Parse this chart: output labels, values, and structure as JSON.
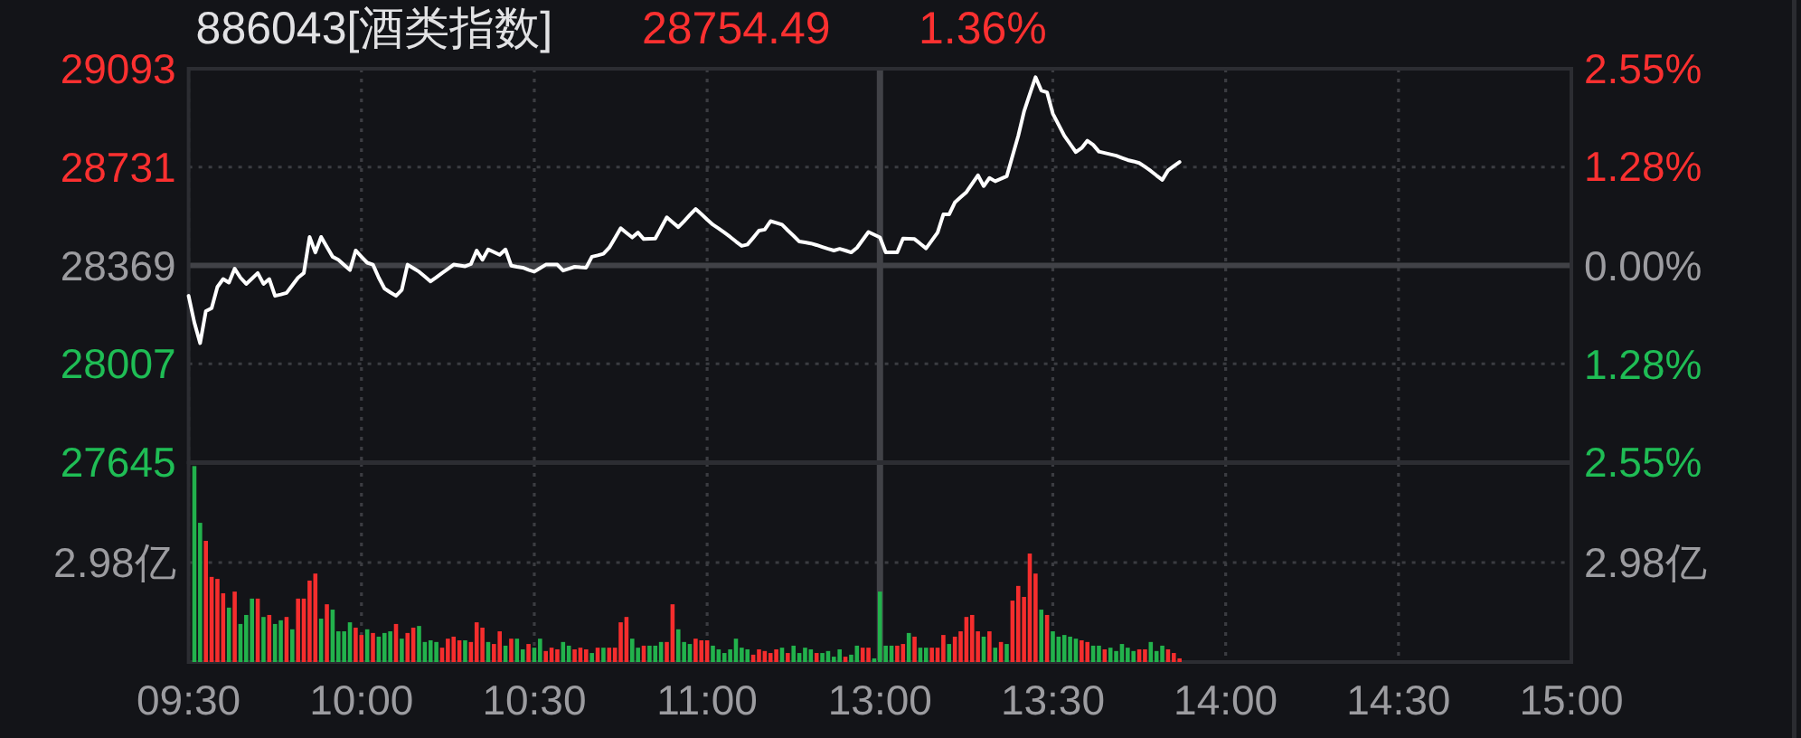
{
  "chart_data": [
    {
      "type": "line",
      "title": "886043[酒类指数]",
      "annotations": [
        "28754.49",
        "1.36%"
      ],
      "categories": [
        "09:30",
        null,
        null,
        null,
        null,
        null,
        null,
        null,
        null,
        null,
        null,
        null,
        null,
        null,
        null,
        null,
        null,
        null,
        null,
        null,
        null,
        null,
        null,
        null,
        null,
        null,
        null,
        null,
        null,
        null,
        "10:00",
        null,
        null,
        null,
        null,
        null,
        null,
        null,
        null,
        null,
        null,
        null,
        null,
        null,
        null,
        null,
        null,
        null,
        null,
        null,
        null,
        null,
        null,
        null,
        null,
        null,
        null,
        null,
        null,
        null,
        "10:30",
        null,
        null,
        null,
        null,
        null,
        null,
        null,
        null,
        null,
        null,
        null,
        null,
        null,
        null,
        null,
        null,
        null,
        null,
        null,
        null,
        null,
        null,
        null,
        null,
        null,
        null,
        null,
        null,
        null,
        "11:00",
        null,
        null,
        null,
        null,
        null,
        null,
        null,
        null,
        null,
        null,
        null,
        null,
        null,
        null,
        null,
        null,
        null,
        null,
        null,
        null,
        null,
        null,
        null,
        null,
        null,
        null,
        null,
        null,
        null,
        "13:00",
        null,
        null,
        null,
        null,
        null,
        null,
        null,
        null,
        null,
        null,
        null,
        null,
        null,
        null,
        null,
        null,
        null,
        null,
        null,
        null,
        null,
        null,
        null,
        null,
        null,
        null,
        null,
        null,
        null,
        "13:30",
        null,
        null,
        null,
        null,
        null,
        null,
        null,
        null,
        null,
        null,
        null,
        null,
        null,
        null,
        null,
        null,
        null,
        null,
        null,
        null,
        null,
        null,
        null,
        null,
        null,
        null,
        null,
        null,
        null,
        "14:00",
        null,
        null,
        null,
        null,
        null,
        null,
        null,
        null,
        null,
        null,
        null,
        null,
        null,
        null,
        null,
        null,
        null,
        null,
        null,
        null,
        null,
        null,
        null,
        null,
        null,
        null,
        null,
        null,
        null,
        "14:30",
        null,
        null,
        null,
        null,
        null,
        null,
        null,
        null,
        null,
        null,
        null,
        null,
        null,
        null,
        null,
        null,
        null,
        null,
        null,
        null,
        null,
        null,
        null,
        null,
        null,
        null,
        null,
        null,
        null,
        "15:00"
      ],
      "series": [
        {
          "color": "#ffffff",
          "values": [
            28257,
            28159,
            28083,
            28201,
            28212,
            28290,
            28319,
            28306,
            28357,
            28324,
            28301,
            28321,
            28341,
            28301,
            28319,
            28257,
            28262,
            28268,
            28296,
            28324,
            28341,
            28474,
            28417,
            28474,
            28437,
            28401,
            28390,
            28371,
            28352,
            28424,
            28401,
            28379,
            28372,
            28324,
            28284,
            28270,
            28257,
            28279,
            28372,
            28359,
            28346,
            28328,
            28310,
            28325,
            28341,
            28356,
            28372,
            28369,
            28366,
            28374,
            28424,
            28390,
            28428,
            28418,
            28408,
            28428,
            28368,
            28364,
            28361,
            28353,
            28346,
            28359,
            28372,
            28372,
            28372,
            28350,
            28357,
            28364,
            28362,
            28361,
            28401,
            28406,
            28412,
            28434,
            28470,
            28506,
            28489,
            28472,
            28490,
            28466,
            28467,
            28468,
            28507,
            28546,
            28528,
            28510,
            28532,
            28555,
            28577,
            28558,
            28538,
            28519,
            28505,
            28490,
            28474,
            28457,
            28441,
            28446,
            28471,
            28497,
            28501,
            28532,
            28526,
            28519,
            28498,
            28478,
            28457,
            28454,
            28450,
            28444,
            28437,
            28430,
            28424,
            28430,
            28424,
            28417,
            28434,
            28463,
            28492,
            28482,
            28472,
            28417,
            28417,
            28417,
            28468,
            28467,
            28466,
            28449,
            28432,
            28461,
            28490,
            28557,
            28557,
            28601,
            28620,
            28639,
            28670,
            28701,
            28661,
            28691,
            28679,
            28688,
            28697,
            28772,
            28846,
            28935,
            28999,
            29062,
            29013,
            29006,
            28928,
            28887,
            28846,
            28816,
            28786,
            28801,
            28828,
            28813,
            28788,
            28783,
            28778,
            28773,
            28765,
            28757,
            28752,
            28746,
            28732,
            28717,
            28700,
            28684,
            28719,
            28735,
            28750,
            null,
            null,
            null,
            null,
            null,
            null,
            null,
            null,
            null,
            null,
            null,
            null,
            null,
            null,
            null,
            null,
            null,
            null,
            null,
            null,
            null,
            null,
            null,
            null,
            null,
            null,
            null,
            null,
            null,
            null,
            null,
            null,
            null,
            null,
            null,
            null,
            null,
            null,
            null,
            null,
            null,
            null,
            null,
            null,
            null,
            null,
            null,
            null,
            null,
            null,
            null,
            null,
            null,
            null,
            null,
            null,
            null,
            null,
            null,
            null,
            null,
            null,
            null,
            null,
            null,
            null,
            null,
            null
          ]
        }
      ],
      "ylim": [
        27645,
        29093
      ],
      "yticks": [
        29093,
        28731,
        28369,
        28007,
        27645
      ],
      "y2lim": [
        -2.55,
        2.55
      ],
      "y2ticks": [
        {
          "value": 2.55,
          "label": "2.55%"
        },
        {
          "value": 1.28,
          "label": "1.28%"
        },
        {
          "value": 0,
          "label": "0.00%"
        },
        {
          "value": -1.28,
          "label": "1.28%"
        },
        {
          "value": -2.55,
          "label": "2.55%"
        }
      ],
      "grid": true,
      "tick_labels": "y",
      "ref_lines": [
        {
          "axis": "y",
          "value": 28369
        },
        {
          "axis": "x",
          "value": "13:00"
        }
      ]
    },
    {
      "type": "bar",
      "categories": [
        "09:30",
        null,
        null,
        null,
        null,
        null,
        null,
        null,
        null,
        null,
        null,
        null,
        null,
        null,
        null,
        null,
        null,
        null,
        null,
        null,
        null,
        null,
        null,
        null,
        null,
        null,
        null,
        null,
        null,
        null,
        "10:00",
        null,
        null,
        null,
        null,
        null,
        null,
        null,
        null,
        null,
        null,
        null,
        null,
        null,
        null,
        null,
        null,
        null,
        null,
        null,
        null,
        null,
        null,
        null,
        null,
        null,
        null,
        null,
        null,
        null,
        "10:30",
        null,
        null,
        null,
        null,
        null,
        null,
        null,
        null,
        null,
        null,
        null,
        null,
        null,
        null,
        null,
        null,
        null,
        null,
        null,
        null,
        null,
        null,
        null,
        null,
        null,
        null,
        null,
        null,
        null,
        "11:00",
        null,
        null,
        null,
        null,
        null,
        null,
        null,
        null,
        null,
        null,
        null,
        null,
        null,
        null,
        null,
        null,
        null,
        null,
        null,
        null,
        null,
        null,
        null,
        null,
        null,
        null,
        null,
        null,
        null,
        "13:00",
        null,
        null,
        null,
        null,
        null,
        null,
        null,
        null,
        null,
        null,
        null,
        null,
        null,
        null,
        null,
        null,
        null,
        null,
        null,
        null,
        null,
        null,
        null,
        null,
        null,
        null,
        null,
        null,
        null,
        "13:30",
        null,
        null,
        null,
        null,
        null,
        null,
        null,
        null,
        null,
        null,
        null,
        null,
        null,
        null,
        null,
        null,
        null,
        null,
        null,
        null,
        null,
        null,
        null,
        null,
        null,
        null,
        null,
        null,
        null,
        "14:00",
        null,
        null,
        null,
        null,
        null,
        null,
        null,
        null,
        null,
        null,
        null,
        null,
        null,
        null,
        null,
        null,
        null,
        null,
        null,
        null,
        null,
        null,
        null,
        null,
        null,
        null,
        null,
        null,
        null,
        "14:30",
        null,
        null,
        null,
        null,
        null,
        null,
        null,
        null,
        null,
        null,
        null,
        null,
        null,
        null,
        null,
        null,
        null,
        null,
        null,
        null,
        null,
        null,
        null,
        null,
        null,
        null,
        null,
        null,
        null,
        "15:00"
      ],
      "values": [
        null,
        5.87,
        4.17,
        3.63,
        2.55,
        2.49,
        2.06,
        1.63,
        2.11,
        1.14,
        1.41,
        1.9,
        1.9,
        1.35,
        1.41,
        1.14,
        1.25,
        1.35,
        0.98,
        1.9,
        1.9,
        2.44,
        2.65,
        1.3,
        1.73,
        1.57,
        0.92,
        0.92,
        1.19,
        1.03,
        0.81,
        0.98,
        0.87,
        0.76,
        0.87,
        0.92,
        1.14,
        0.7,
        0.87,
        1.03,
        1.08,
        0.6,
        0.65,
        0.6,
        0.43,
        0.7,
        0.76,
        0.65,
        0.65,
        0.6,
        1.19,
        1.03,
        0.6,
        0.54,
        0.92,
        0.49,
        0.7,
        0.7,
        0.38,
        0.54,
        0.43,
        0.7,
        0.33,
        0.43,
        0.38,
        0.6,
        0.49,
        0.38,
        0.43,
        0.38,
        0.27,
        0.43,
        0.43,
        0.43,
        0.43,
        1.19,
        1.35,
        0.7,
        0.43,
        0.49,
        0.49,
        0.49,
        0.6,
        0.6,
        1.73,
        0.98,
        0.6,
        0.54,
        0.7,
        0.65,
        0.65,
        0.49,
        0.38,
        0.27,
        0.38,
        0.7,
        0.43,
        0.38,
        0.22,
        0.38,
        0.33,
        0.27,
        0.38,
        0.43,
        0.27,
        0.49,
        0.27,
        0.43,
        0.38,
        0.27,
        0.27,
        0.33,
        0.16,
        0.38,
        0.16,
        0.22,
        0.49,
        0.43,
        0.43,
        0.11,
        2.11,
        0.49,
        0.49,
        0.49,
        0.54,
        0.87,
        0.76,
        0.43,
        0.43,
        0.43,
        0.43,
        0.81,
        0.54,
        0.76,
        0.92,
        1.35,
        1.41,
        0.92,
        0.76,
        0.92,
        0.43,
        0.6,
        0.54,
        1.84,
        2.28,
        1.95,
        3.25,
        2.65,
        1.57,
        1.41,
        0.92,
        0.76,
        0.81,
        0.76,
        0.7,
        0.65,
        0.6,
        0.49,
        0.49,
        0.38,
        0.43,
        0.33,
        0.54,
        0.43,
        0.33,
        0.38,
        0.38,
        0.6,
        0.33,
        0.49,
        0.38,
        0.27,
        0.11,
        null,
        null,
        null,
        null,
        null,
        null,
        null,
        null,
        null,
        null,
        null,
        null,
        null,
        null,
        null,
        null,
        null,
        null,
        null,
        null,
        null,
        null,
        null,
        null,
        null,
        null,
        null,
        null,
        null,
        null,
        null,
        null,
        null,
        null,
        null,
        null,
        null,
        null,
        null,
        null,
        null,
        null,
        null,
        null,
        null,
        null,
        null,
        null,
        null,
        null,
        null,
        null,
        null,
        null,
        null,
        null,
        null,
        null,
        null,
        null,
        null,
        null,
        null,
        null,
        null,
        null,
        null,
        null
      ],
      "colors": [
        null,
        "#22b24c",
        "#22b24c",
        "#f52d2d",
        "#f52d2d",
        "#f52d2d",
        "#f52d2d",
        "#22b24c",
        "#f52d2d",
        "#22b24c",
        "#22b24c",
        "#22b24c",
        "#f52d2d",
        "#22b24c",
        "#f52d2d",
        "#22b24c",
        "#22b24c",
        "#f52d2d",
        "#22b24c",
        "#f52d2d",
        "#f52d2d",
        "#f52d2d",
        "#f52d2d",
        "#22b24c",
        "#f52d2d",
        "#22b24c",
        "#22b24c",
        "#22b24c",
        "#22b24c",
        "#f52d2d",
        "#f52d2d",
        "#22b24c",
        "#f52d2d",
        "#22b24c",
        "#22b24c",
        "#22b24c",
        "#f52d2d",
        "#22b24c",
        "#f52d2d",
        "#f52d2d",
        "#22b24c",
        "#22b24c",
        "#22b24c",
        "#22b24c",
        "#f52d2d",
        "#f52d2d",
        "#f52d2d",
        "#f52d2d",
        "#22b24c",
        "#f52d2d",
        "#f52d2d",
        "#f52d2d",
        "#22b24c",
        "#f52d2d",
        "#f52d2d",
        "#22b24c",
        "#f52d2d",
        "#22b24c",
        "#22b24c",
        "#f52d2d",
        "#22b24c",
        "#22b24c",
        "#f52d2d",
        "#f52d2d",
        "#f52d2d",
        "#22b24c",
        "#22b24c",
        "#f52d2d",
        "#f52d2d",
        "#f52d2d",
        "#22b24c",
        "#f52d2d",
        "#22b24c",
        "#f52d2d",
        "#f52d2d",
        "#f52d2d",
        "#f52d2d",
        "#22b24c",
        "#22b24c",
        "#f52d2d",
        "#22b24c",
        "#22b24c",
        "#22b24c",
        "#f52d2d",
        "#f52d2d",
        "#22b24c",
        "#22b24c",
        "#22b24c",
        "#f52d2d",
        "#f52d2d",
        "#f52d2d",
        "#22b24c",
        "#22b24c",
        "#22b24c",
        "#22b24c",
        "#22b24c",
        "#22b24c",
        "#22b24c",
        "#f52d2d",
        "#f52d2d",
        "#f52d2d",
        "#f52d2d",
        "#f52d2d",
        "#22b24c",
        "#f52d2d",
        "#22b24c",
        "#22b24c",
        "#22b24c",
        "#22b24c",
        "#f52d2d",
        "#22b24c",
        "#22b24c",
        "#22b24c",
        "#22b24c",
        "#f52d2d",
        "#22b24c",
        "#22b24c",
        "#f52d2d",
        "#f52d2d",
        "#22b24c",
        "#22b24c",
        "#22b24c",
        "#22b24c",
        "#f52d2d",
        "#f52d2d",
        "#22b24c",
        "#f52d2d",
        "#22b24c",
        "#22b24c",
        "#f52d2d",
        "#f52d2d",
        "#f52d2d",
        "#22b24c",
        "#f52d2d",
        "#f52d2d",
        "#f52d2d",
        "#f52d2d",
        "#f52d2d",
        "#22b24c",
        "#f52d2d",
        "#22b24c",
        "#f52d2d",
        "#22b24c",
        "#f52d2d",
        "#f52d2d",
        "#f52d2d",
        "#f52d2d",
        "#f52d2d",
        "#22b24c",
        "#f52d2d",
        "#22b24c",
        "#22b24c",
        "#22b24c",
        "#22b24c",
        "#22b24c",
        "#f52d2d",
        "#f52d2d",
        "#22b24c",
        "#22b24c",
        "#f52d2d",
        "#22b24c",
        "#22b24c",
        "#22b24c",
        "#22b24c",
        "#22b24c",
        "#f52d2d",
        "#f52d2d",
        "#22b24c",
        "#22b24c",
        "#22b24c",
        "#f52d2d",
        "#f52d2d",
        "#f52d2d",
        null,
        null,
        null,
        null,
        null,
        null,
        null,
        null,
        null,
        null,
        null,
        null,
        null,
        null,
        null,
        null,
        null,
        null,
        null,
        null,
        null,
        null,
        null,
        null,
        null,
        null,
        null,
        null,
        null,
        null,
        null,
        null,
        null,
        null,
        null,
        null,
        null,
        null,
        null,
        null,
        null,
        null,
        null,
        null,
        null,
        null,
        null,
        null,
        null,
        null,
        null,
        null,
        null,
        null,
        null,
        null,
        null,
        null,
        null,
        null,
        null,
        null,
        null,
        null,
        null,
        null,
        null,
        null
      ],
      "ylim": [
        0,
        5.96
      ],
      "yticks": [
        {
          "value": 2.98,
          "label": "2.98亿"
        }
      ],
      "annotations": [
        "2.98亿"
      ],
      "grid": true,
      "ref_lines": [
        {
          "axis": "x",
          "value": "13:00"
        }
      ]
    }
  ]
}
